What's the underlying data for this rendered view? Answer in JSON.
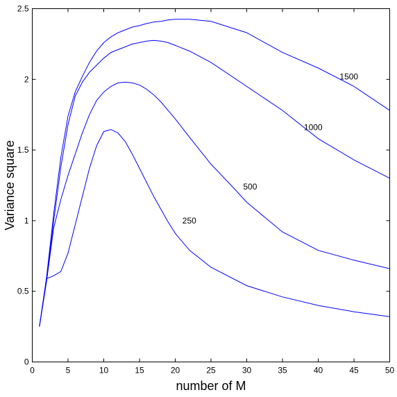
{
  "chart_data": {
    "type": "line",
    "title": "",
    "xlabel": "number of M",
    "ylabel": "Variance  square",
    "xlim": [
      0,
      50
    ],
    "ylim": [
      0,
      2.5
    ],
    "xticks": [
      0,
      5,
      10,
      15,
      20,
      25,
      30,
      35,
      40,
      45,
      50
    ],
    "yticks": [
      0,
      0.5,
      1,
      1.5,
      2,
      2.5
    ],
    "ytick_labels": [
      "0",
      "0.5",
      "1",
      "1.5",
      "2",
      "2.5"
    ],
    "grid": false,
    "line_color": "#0000ff",
    "series": [
      {
        "name": "250",
        "label_at": [
          21,
          0.98
        ],
        "points": [
          [
            1,
            0.25
          ],
          [
            2,
            0.59
          ],
          [
            3,
            0.61
          ],
          [
            4,
            0.64
          ],
          [
            5,
            0.77
          ],
          [
            6,
            0.97
          ],
          [
            7,
            1.17
          ],
          [
            8,
            1.37
          ],
          [
            9,
            1.53
          ],
          [
            10,
            1.63
          ],
          [
            11,
            1.645
          ],
          [
            12,
            1.62
          ],
          [
            13,
            1.56
          ],
          [
            14,
            1.47
          ],
          [
            15,
            1.37
          ],
          [
            16,
            1.27
          ],
          [
            17,
            1.17
          ],
          [
            18,
            1.08
          ],
          [
            19,
            0.99
          ],
          [
            20,
            0.91
          ],
          [
            22,
            0.79
          ],
          [
            25,
            0.67
          ],
          [
            30,
            0.54
          ],
          [
            35,
            0.46
          ],
          [
            40,
            0.4
          ],
          [
            45,
            0.355
          ],
          [
            50,
            0.32
          ]
        ]
      },
      {
        "name": "500",
        "label_at": [
          29.5,
          1.22
        ],
        "points": [
          [
            1,
            0.25
          ],
          [
            2,
            0.57
          ],
          [
            3,
            0.95
          ],
          [
            4,
            1.15
          ],
          [
            5,
            1.32
          ],
          [
            6,
            1.47
          ],
          [
            7,
            1.62
          ],
          [
            8,
            1.75
          ],
          [
            9,
            1.85
          ],
          [
            10,
            1.91
          ],
          [
            11,
            1.95
          ],
          [
            12,
            1.975
          ],
          [
            13,
            1.98
          ],
          [
            14,
            1.975
          ],
          [
            15,
            1.96
          ],
          [
            16,
            1.93
          ],
          [
            17,
            1.89
          ],
          [
            18,
            1.84
          ],
          [
            19,
            1.78
          ],
          [
            20,
            1.72
          ],
          [
            22,
            1.59
          ],
          [
            25,
            1.4
          ],
          [
            28,
            1.24
          ],
          [
            30,
            1.13
          ],
          [
            35,
            0.92
          ],
          [
            40,
            0.79
          ],
          [
            45,
            0.72
          ],
          [
            50,
            0.66
          ]
        ]
      },
      {
        "name": "1000",
        "label_at": [
          38,
          1.64
        ],
        "points": [
          [
            1,
            0.25
          ],
          [
            2,
            0.58
          ],
          [
            3,
            1.0
          ],
          [
            4,
            1.38
          ],
          [
            5,
            1.68
          ],
          [
            6,
            1.88
          ],
          [
            7,
            1.98
          ],
          [
            8,
            2.05
          ],
          [
            9,
            2.1
          ],
          [
            10,
            2.15
          ],
          [
            11,
            2.19
          ],
          [
            12,
            2.21
          ],
          [
            13,
            2.23
          ],
          [
            14,
            2.25
          ],
          [
            15,
            2.26
          ],
          [
            16,
            2.27
          ],
          [
            17,
            2.275
          ],
          [
            18,
            2.27
          ],
          [
            19,
            2.26
          ],
          [
            20,
            2.24
          ],
          [
            22,
            2.2
          ],
          [
            25,
            2.12
          ],
          [
            30,
            1.95
          ],
          [
            35,
            1.78
          ],
          [
            40,
            1.58
          ],
          [
            45,
            1.43
          ],
          [
            50,
            1.3
          ]
        ]
      },
      {
        "name": "1500",
        "label_at": [
          43,
          2.0
        ],
        "points": [
          [
            1,
            0.25
          ],
          [
            2,
            0.6
          ],
          [
            3,
            1.05
          ],
          [
            4,
            1.45
          ],
          [
            5,
            1.74
          ],
          [
            6,
            1.91
          ],
          [
            7,
            2.02
          ],
          [
            8,
            2.12
          ],
          [
            9,
            2.2
          ],
          [
            10,
            2.26
          ],
          [
            11,
            2.3
          ],
          [
            12,
            2.33
          ],
          [
            13,
            2.35
          ],
          [
            14,
            2.37
          ],
          [
            15,
            2.38
          ],
          [
            16,
            2.395
          ],
          [
            17,
            2.405
          ],
          [
            18,
            2.41
          ],
          [
            19,
            2.42
          ],
          [
            20,
            2.425
          ],
          [
            22,
            2.425
          ],
          [
            25,
            2.41
          ],
          [
            30,
            2.33
          ],
          [
            35,
            2.19
          ],
          [
            40,
            2.08
          ],
          [
            45,
            1.95
          ],
          [
            50,
            1.78
          ]
        ]
      }
    ]
  }
}
